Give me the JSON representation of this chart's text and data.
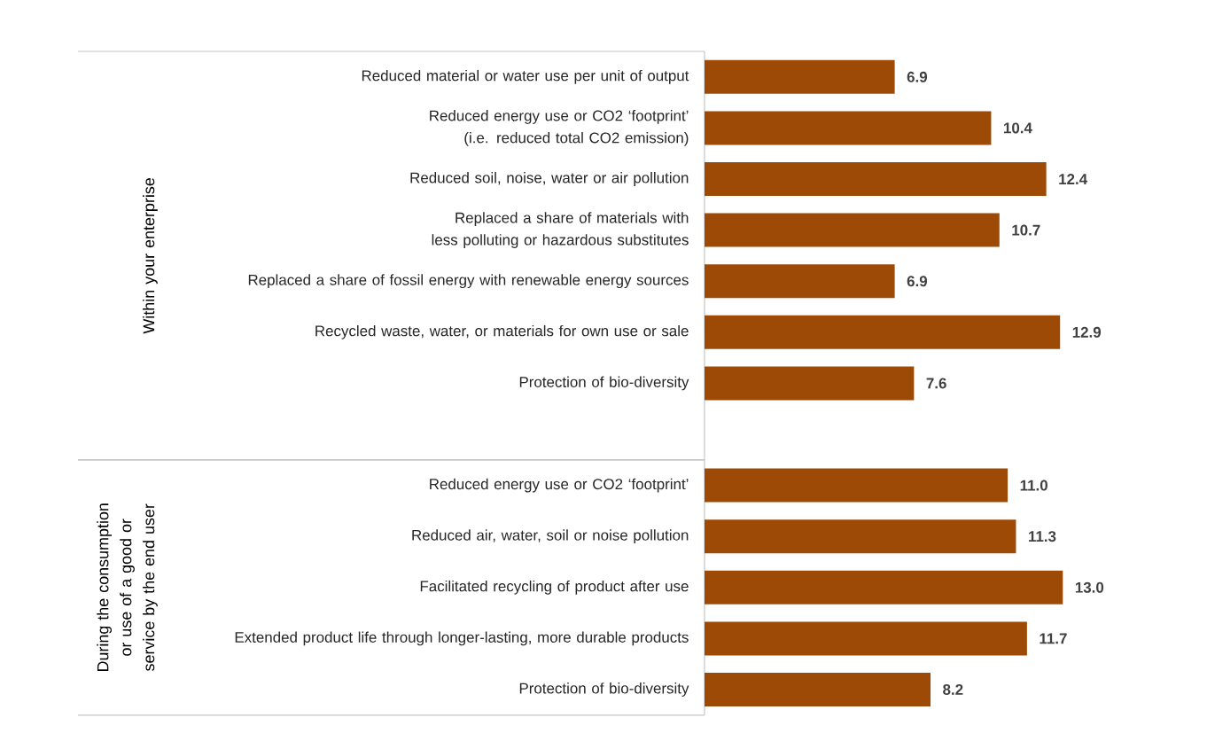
{
  "chart_data": {
    "type": "bar",
    "orientation": "horizontal",
    "value_labels": [
      "6.9",
      "10.4",
      "12.4",
      "10.7",
      "6.9",
      "12.9",
      "7.6",
      null,
      "11.0",
      "11.3",
      "13.0",
      "11.7",
      "8.2"
    ],
    "color": "#9c4a06",
    "categories": [
      "Reduced material or water use per unit of output",
      "Reduced energy use or CO2 ‘footprint’ (i.e. reduced total CO2 emission)",
      "Reduced soil, noise, water or air pollution",
      "Replaced a share of materials with less polluting or hazardous substitutes",
      "Replaced a share of fossil energy with renewable energy sources",
      "Recycled waste, water, or materials for own use or sale",
      "Protection of bio-diversity",
      null,
      "Reduced energy use or CO2 ‘footprint’",
      "Reduced air, water, soil or noise pollution",
      "Facilitated recycling of product after use",
      "Extended product life through longer-lasting, more durable products",
      "Protection of bio-diversity"
    ],
    "values": [
      6.9,
      10.4,
      12.4,
      10.7,
      6.9,
      12.9,
      7.6,
      null,
      11.0,
      11.3,
      13.0,
      11.7,
      8.2
    ],
    "annotations": [
      "Within your enterprise",
      "During the consumption or use of a good or service by the end user"
    ]
  }
}
